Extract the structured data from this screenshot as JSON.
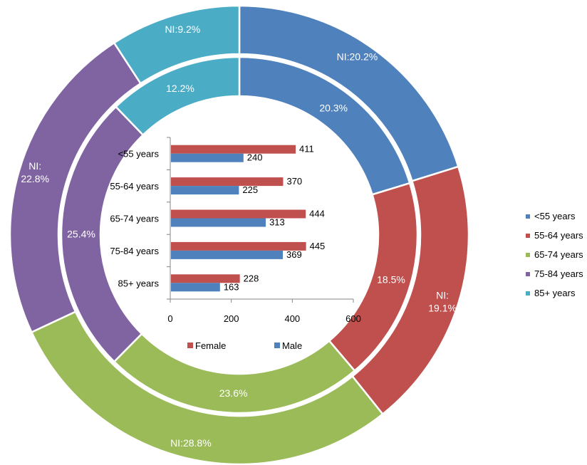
{
  "chart_data": [
    {
      "type": "pie",
      "variant": "donut",
      "ring": "outer",
      "categories": [
        "<55 years",
        "55-64 years",
        "65-74 years",
        "75-84 years",
        "85+ years"
      ],
      "values": [
        20.2,
        19.1,
        28.8,
        22.8,
        9.2
      ],
      "labels": [
        "NI:20.2%",
        "NI: 19.1%",
        "NI:28.8%",
        "NI: 22.8%",
        "NI:9.2%"
      ]
    },
    {
      "type": "pie",
      "variant": "donut",
      "ring": "inner",
      "categories": [
        "<55 years",
        "55-64 years",
        "65-74 years",
        "75-84 years",
        "85+ years"
      ],
      "values": [
        20.3,
        18.5,
        23.6,
        25.4,
        12.2
      ],
      "labels": [
        "20.3%",
        "18.5%",
        "23.6%",
        "25.4%",
        "12.2%"
      ]
    },
    {
      "type": "bar",
      "orientation": "horizontal",
      "categories": [
        "<55 years",
        "55-64 years",
        "65-74 years",
        "75-84 years",
        "85+ years"
      ],
      "series": [
        {
          "name": "Female",
          "values": [
            411,
            370,
            444,
            445,
            228
          ],
          "color": "#c0504d"
        },
        {
          "name": "Male",
          "values": [
            240,
            225,
            313,
            369,
            163
          ],
          "color": "#4f81bd"
        }
      ],
      "xlim": [
        0,
        600
      ],
      "xticks": [
        "0",
        "200",
        "400",
        "600"
      ],
      "legend_position": "bottom"
    }
  ],
  "legend": {
    "items": [
      "<55 years",
      "55-64 years",
      "65-74 years",
      "75-84 years",
      "85+ years"
    ],
    "position": "right"
  },
  "colors": [
    "#4f81bd",
    "#c0504d",
    "#9bbb59",
    "#8064a2",
    "#4bacc6"
  ]
}
